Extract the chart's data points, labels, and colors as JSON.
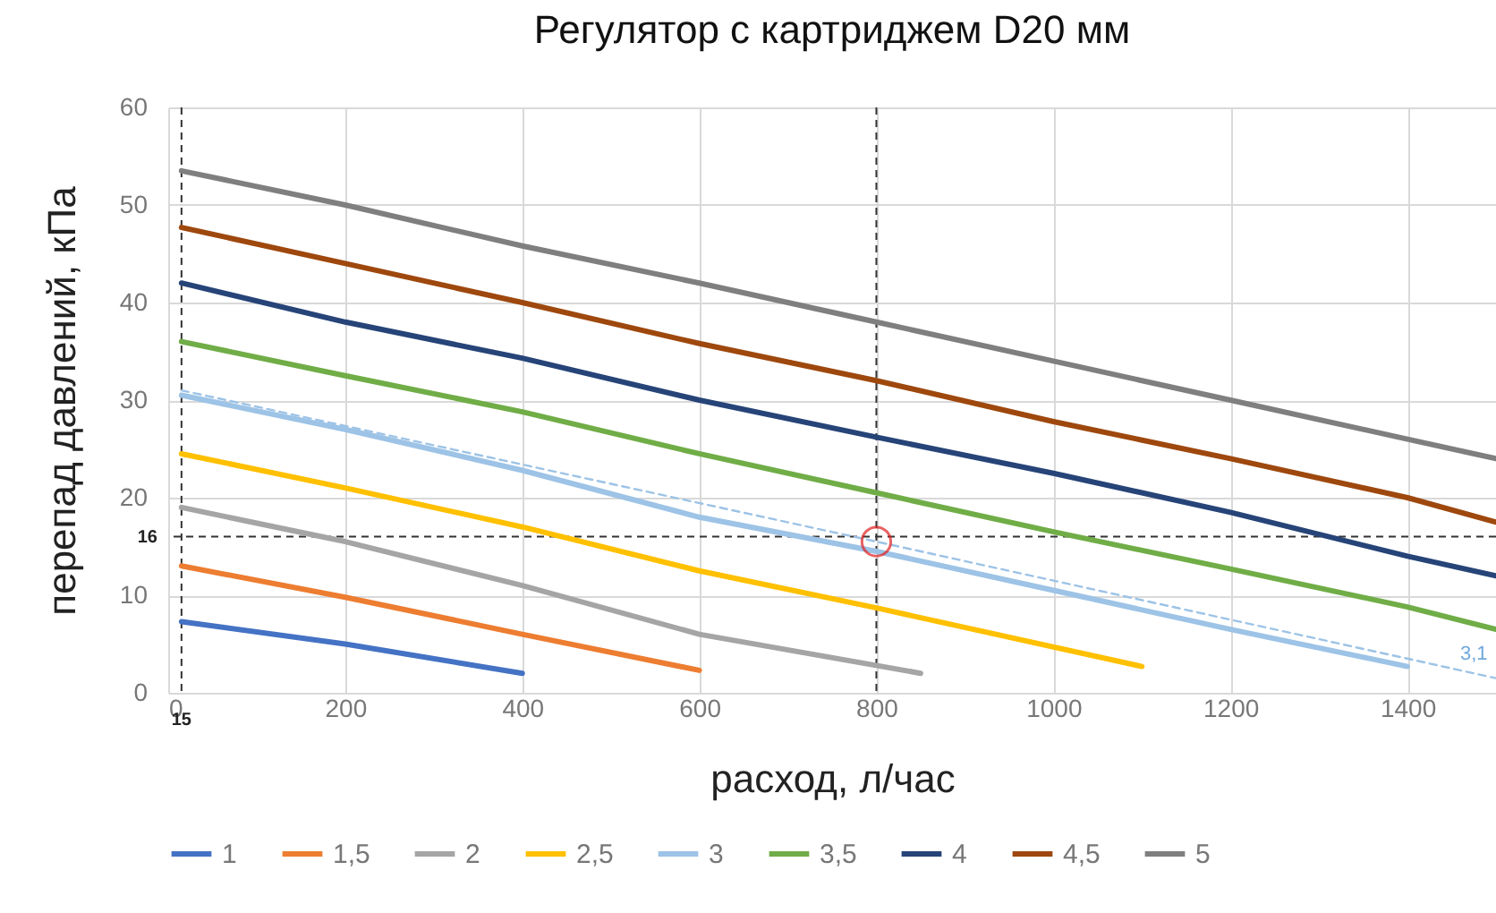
{
  "chart_data": {
    "type": "line",
    "title": "Регулятор с картриджем D20 мм",
    "xlabel": "расход, л/час",
    "ylabel": "перепад давлений, кПа",
    "xlim": [
      0,
      1500
    ],
    "ylim": [
      0,
      60
    ],
    "xticks": [
      0,
      200,
      400,
      600,
      800,
      1000,
      1200,
      1400
    ],
    "yticks": [
      0,
      10,
      20,
      30,
      40,
      50,
      60
    ],
    "grid": true,
    "legend": "bottom",
    "line_style": "solid",
    "series": [
      {
        "name": "1",
        "color": "#4472c4",
        "x": [
          15,
          200,
          400
        ],
        "values": [
          7.3,
          5,
          2
        ]
      },
      {
        "name": "1,5",
        "color": "#ed7d31",
        "x": [
          15,
          200,
          400,
          600
        ],
        "values": [
          13,
          9.8,
          6,
          2.3
        ]
      },
      {
        "name": "2",
        "color": "#a5a5a5",
        "x": [
          15,
          200,
          400,
          600,
          850
        ],
        "values": [
          19,
          15.5,
          11,
          6,
          2
        ]
      },
      {
        "name": "2,5",
        "color": "#ffc000",
        "x": [
          15,
          200,
          400,
          600,
          800,
          1100
        ],
        "values": [
          24.5,
          21,
          17,
          12.5,
          8.7,
          2.7
        ]
      },
      {
        "name": "3",
        "color": "#9dc3e6",
        "x": [
          15,
          200,
          400,
          600,
          800,
          1000,
          1200,
          1400
        ],
        "values": [
          30.5,
          27,
          22.8,
          18,
          14.5,
          10.5,
          6.5,
          2.7
        ]
      },
      {
        "name": "3,5",
        "color": "#70ad47",
        "x": [
          15,
          200,
          400,
          600,
          800,
          1000,
          1200,
          1400,
          1500
        ],
        "values": [
          36,
          32.5,
          28.8,
          24.5,
          20.5,
          16.5,
          12.7,
          8.8,
          6.5
        ]
      },
      {
        "name": "4",
        "color": "#264478",
        "x": [
          15,
          200,
          400,
          600,
          800,
          1000,
          1200,
          1400,
          1500
        ],
        "values": [
          42,
          38,
          34.3,
          30,
          26.2,
          22.5,
          18.5,
          14,
          12
        ]
      },
      {
        "name": "4,5",
        "color": "#9e480e",
        "x": [
          15,
          200,
          400,
          600,
          800,
          1000,
          1200,
          1400,
          1500
        ],
        "values": [
          47.7,
          44,
          40,
          35.8,
          32,
          27.8,
          24,
          20,
          17.5
        ]
      },
      {
        "name": "5",
        "color": "#7f7f7f",
        "x": [
          15,
          200,
          400,
          600,
          800,
          1000,
          1200,
          1400,
          1500
        ],
        "values": [
          53.5,
          50,
          45.8,
          42,
          38,
          34,
          30,
          26,
          24
        ]
      },
      {
        "color": "#9dc3e6",
        "line_style": "dashed",
        "x": [
          15,
          800,
          1500
        ],
        "values": [
          31,
          15.5,
          1.5
        ]
      },
      {
        "type": "scatter",
        "marker": "circle",
        "color": "#e02020",
        "x": [
          800
        ],
        "values": [
          15.5
        ]
      }
    ],
    "ref_lines": [
      {
        "axis": "x",
        "value": 15,
        "label": "15"
      },
      {
        "axis": "x",
        "value": 800
      },
      {
        "axis": "y",
        "value": 16,
        "label": "16"
      }
    ],
    "annotations": [
      {
        "text": "3,1",
        "x": 1475,
        "y": 3
      }
    ]
  }
}
